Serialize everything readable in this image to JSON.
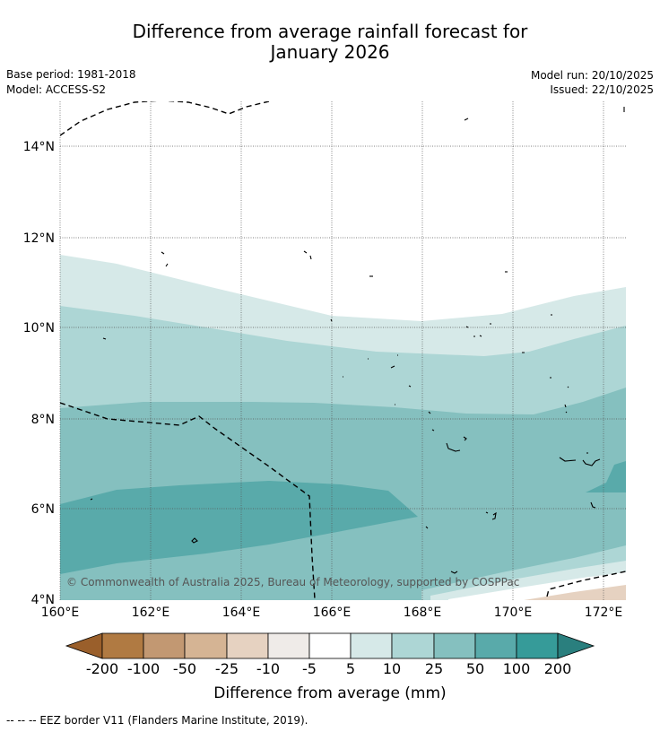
{
  "header": {
    "title_line1": "Difference from average rainfall forecast for",
    "title_line2": "January 2026",
    "base_period": "Base period: 1981-2018",
    "model": "Model: ACCESS-S2",
    "model_run": "Model run: 20/10/2025",
    "issued": "Issued: 22/10/2025"
  },
  "map": {
    "lat_labels": [
      "14°N",
      "12°N",
      "10°N",
      "8°N",
      "6°N",
      "4°N"
    ],
    "lon_labels": [
      "160°E",
      "162°E",
      "164°E",
      "166°E",
      "168°E",
      "170°E",
      "172°E"
    ],
    "copyright": "© Commonwealth of Australia 2025, Bureau of Meteorology, supported by COSPPac"
  },
  "legend": {
    "tick_labels": [
      "-200",
      "-100",
      "-50",
      "-25",
      "-10",
      "-5",
      "5",
      "10",
      "25",
      "50",
      "100",
      "200"
    ],
    "title": "Difference from average (mm)",
    "colors": [
      "#9a5f2b",
      "#b07a42",
      "#c29872",
      "#d5b494",
      "#e6d2c1",
      "#efebe8",
      "#ffffff",
      "#d6e9e8",
      "#add6d5",
      "#85c0bf",
      "#59aaaa",
      "#369b99",
      "#2a7f7e"
    ]
  },
  "footer": {
    "eez_note": "--  --  -- EEZ border V11 (Flanders Marine Institute, 2019)."
  }
}
